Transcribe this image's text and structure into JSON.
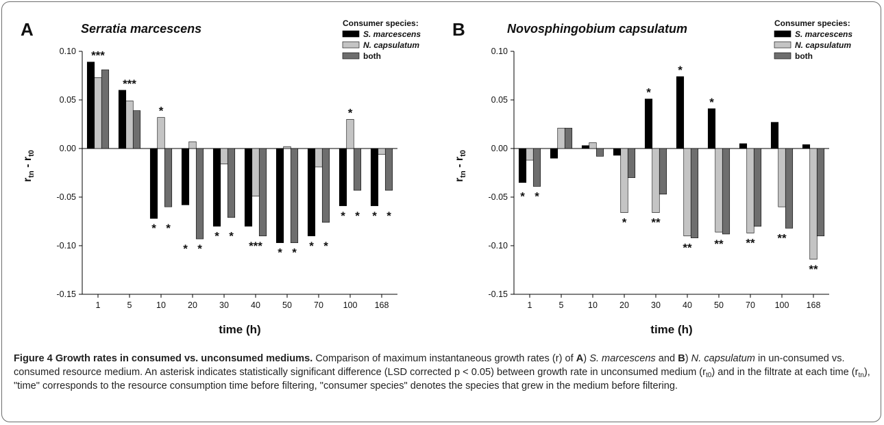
{
  "chart_data": [
    {
      "type": "bar",
      "panel_label": "A",
      "title": "Serratia marcescens",
      "xlabel": "time (h)",
      "ylabel": "r",
      "ylabel_sub1": "tn",
      "ylabel_sep": " - r",
      "ylabel_sub2": "t0",
      "ylim": [
        -0.15,
        0.1
      ],
      "yticks": [
        "0.10",
        "0.05",
        "0.00",
        "-0.05",
        "-0.10",
        "-0.15"
      ],
      "legend_title": "Consumer species:",
      "legend_position": "top-right",
      "categories": [
        "1",
        "5",
        "10",
        "20",
        "30",
        "40",
        "50",
        "70",
        "100",
        "168"
      ],
      "series": [
        {
          "name": "S. marcescens",
          "color": "#000000",
          "values": [
            0.089,
            0.06,
            -0.072,
            -0.058,
            -0.08,
            -0.08,
            -0.097,
            -0.09,
            -0.059,
            -0.059
          ]
        },
        {
          "name": "N. capsulatum",
          "color": "#c4c4c4",
          "values": [
            0.073,
            0.049,
            0.032,
            0.007,
            -0.016,
            -0.049,
            0.002,
            -0.019,
            0.03,
            -0.006
          ]
        },
        {
          "name": "both",
          "color": "#6e6e6e",
          "values": [
            0.081,
            0.039,
            -0.06,
            -0.093,
            -0.071,
            -0.09,
            -0.097,
            -0.076,
            -0.043,
            -0.043
          ]
        }
      ],
      "annotations": [
        {
          "text": "***",
          "category": "1",
          "series": 1,
          "value": 0.089,
          "position": "above"
        },
        {
          "text": "***",
          "category": "5",
          "series": 1,
          "value": 0.06,
          "position": "above"
        },
        {
          "text": "*",
          "category": "10",
          "series": 1,
          "value": 0.032,
          "position": "above"
        },
        {
          "text": "*",
          "category": "100",
          "series": 1,
          "value": 0.03,
          "position": "above"
        },
        {
          "text": "*",
          "category": "10",
          "series": 0,
          "value": -0.072,
          "position": "below"
        },
        {
          "text": "*",
          "category": "10",
          "series": 2,
          "value": -0.072,
          "position": "below"
        },
        {
          "text": "*",
          "category": "20",
          "series": 0,
          "value": -0.093,
          "position": "below"
        },
        {
          "text": "*",
          "category": "20",
          "series": 2,
          "value": -0.093,
          "position": "below"
        },
        {
          "text": "*",
          "category": "30",
          "series": 0,
          "value": -0.08,
          "position": "below"
        },
        {
          "text": "*",
          "category": "30",
          "series": 2,
          "value": -0.08,
          "position": "below"
        },
        {
          "text": "***",
          "category": "40",
          "series": 1,
          "value": -0.09,
          "position": "below"
        },
        {
          "text": "*",
          "category": "50",
          "series": 0,
          "value": -0.097,
          "position": "below"
        },
        {
          "text": "*",
          "category": "50",
          "series": 2,
          "value": -0.097,
          "position": "below"
        },
        {
          "text": "*",
          "category": "70",
          "series": 0,
          "value": -0.09,
          "position": "below"
        },
        {
          "text": "*",
          "category": "70",
          "series": 2,
          "value": -0.09,
          "position": "below"
        },
        {
          "text": "*",
          "category": "100",
          "series": 0,
          "value": -0.059,
          "position": "below"
        },
        {
          "text": "*",
          "category": "100",
          "series": 2,
          "value": -0.059,
          "position": "below"
        },
        {
          "text": "*",
          "category": "168",
          "series": 0,
          "value": -0.059,
          "position": "below"
        },
        {
          "text": "*",
          "category": "168",
          "series": 2,
          "value": -0.059,
          "position": "below"
        }
      ]
    },
    {
      "type": "bar",
      "panel_label": "B",
      "title": "Novosphingobium capsulatum",
      "xlabel": "time (h)",
      "ylabel": "r",
      "ylabel_sub1": "tn",
      "ylabel_sep": " - r",
      "ylabel_sub2": "t0",
      "ylim": [
        -0.15,
        0.1
      ],
      "yticks": [
        "0.10",
        "0.05",
        "0.00",
        "-0.05",
        "-0.10",
        "-0.15"
      ],
      "legend_title": "Consumer species:",
      "legend_position": "top-right",
      "categories": [
        "1",
        "5",
        "10",
        "20",
        "30",
        "40",
        "50",
        "70",
        "100",
        "168"
      ],
      "series": [
        {
          "name": "S. marcescens",
          "color": "#000000",
          "values": [
            -0.035,
            -0.01,
            0.003,
            -0.007,
            0.051,
            0.074,
            0.041,
            0.005,
            0.027,
            0.004
          ]
        },
        {
          "name": "N. capsulatum",
          "color": "#c4c4c4",
          "values": [
            -0.012,
            0.021,
            0.006,
            -0.066,
            -0.066,
            -0.09,
            -0.086,
            -0.087,
            -0.06,
            -0.114
          ]
        },
        {
          "name": "both",
          "color": "#6e6e6e",
          "values": [
            -0.039,
            0.021,
            -0.008,
            -0.03,
            -0.047,
            -0.092,
            -0.088,
            -0.08,
            -0.082,
            -0.09
          ]
        }
      ],
      "annotations": [
        {
          "text": "*",
          "category": "1",
          "series": 0,
          "value": -0.039,
          "position": "below"
        },
        {
          "text": "*",
          "category": "1",
          "series": 2,
          "value": -0.039,
          "position": "below"
        },
        {
          "text": "*",
          "category": "20",
          "series": 1,
          "value": -0.066,
          "position": "below"
        },
        {
          "text": "*",
          "category": "30",
          "series": 0,
          "value": 0.051,
          "position": "above"
        },
        {
          "text": "**",
          "category": "30",
          "series": 1,
          "value": -0.066,
          "position": "below"
        },
        {
          "text": "*",
          "category": "40",
          "series": 0,
          "value": 0.074,
          "position": "above"
        },
        {
          "text": "**",
          "category": "40",
          "series": 1,
          "value": -0.092,
          "position": "below"
        },
        {
          "text": "*",
          "category": "50",
          "series": 0,
          "value": 0.041,
          "position": "above"
        },
        {
          "text": "**",
          "category": "50",
          "series": 1,
          "value": -0.088,
          "position": "below"
        },
        {
          "text": "**",
          "category": "70",
          "series": 1,
          "value": -0.087,
          "position": "below"
        },
        {
          "text": "**",
          "category": "100",
          "series": 1,
          "value": -0.082,
          "position": "below"
        },
        {
          "text": "**",
          "category": "168",
          "series": 1,
          "value": -0.114,
          "position": "below"
        }
      ]
    }
  ],
  "caption": {
    "title": "Figure 4 Growth rates in consumed vs. unconsumed mediums.",
    "t1": " Comparison of maximum instantaneous growth rates (r) of ",
    "a": "A",
    "t2": ") ",
    "sp1": "S. marcescens",
    "t3": " and ",
    "b": "B",
    "t4": ") ",
    "sp2": "N. capsulatum",
    "t5": " in un-consumed vs. consumed resource medium. An asterisk indicates statistically significant difference (LSD corrected p < 0.05) between growth rate in unconsumed medium (r",
    "sub1": "t0",
    "t6": ") and in the filtrate at each time (r",
    "sub2": "tn",
    "t7": "), \"time\" corresponds to the resource consumption time before filtering, \"consumer species\" denotes the species that grew in the medium before filtering."
  }
}
